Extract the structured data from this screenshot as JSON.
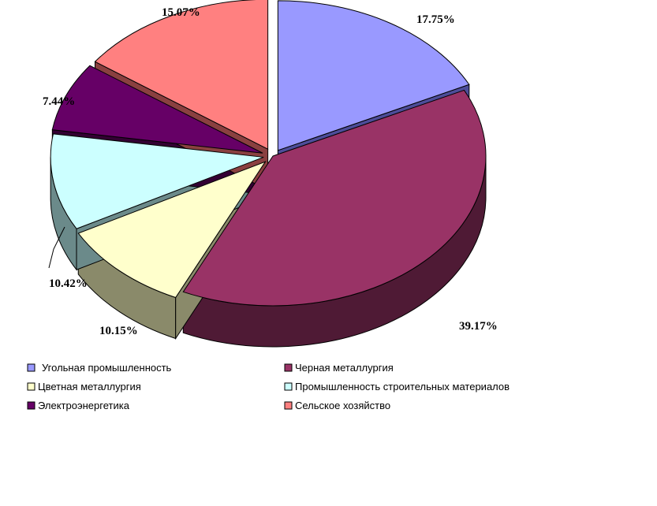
{
  "chart_data": {
    "type": "pie",
    "style": "3d-exploded",
    "title": "",
    "legend_position": "bottom",
    "slices": [
      {
        "name": "Угольная промышленность",
        "label": "17.75%",
        "value": 17.75,
        "color": "#9999FF",
        "side_color": "#4D4D99"
      },
      {
        "name": "Черная металлургия",
        "label": "39.17%",
        "value": 39.17,
        "color": "#993366",
        "side_color": "#4F1A35"
      },
      {
        "name": "Цветная металлургия",
        "label": "10.15%",
        "value": 10.15,
        "color": "#FFFFCC",
        "side_color": "#8A8A6A"
      },
      {
        "name": "Промышленность строительных материалов",
        "label": "10.42%",
        "value": 10.42,
        "color": "#CCFFFF",
        "side_color": "#6B8A8A"
      },
      {
        "name": "Электроэнергетика",
        "label": "7.44%",
        "value": 7.44,
        "color": "#660066",
        "side_color": "#330033"
      },
      {
        "name": "Сельское хозяйство",
        "label": "15.07%",
        "value": 15.07,
        "color": "#FF8080",
        "side_color": "#8A4040"
      }
    ]
  }
}
